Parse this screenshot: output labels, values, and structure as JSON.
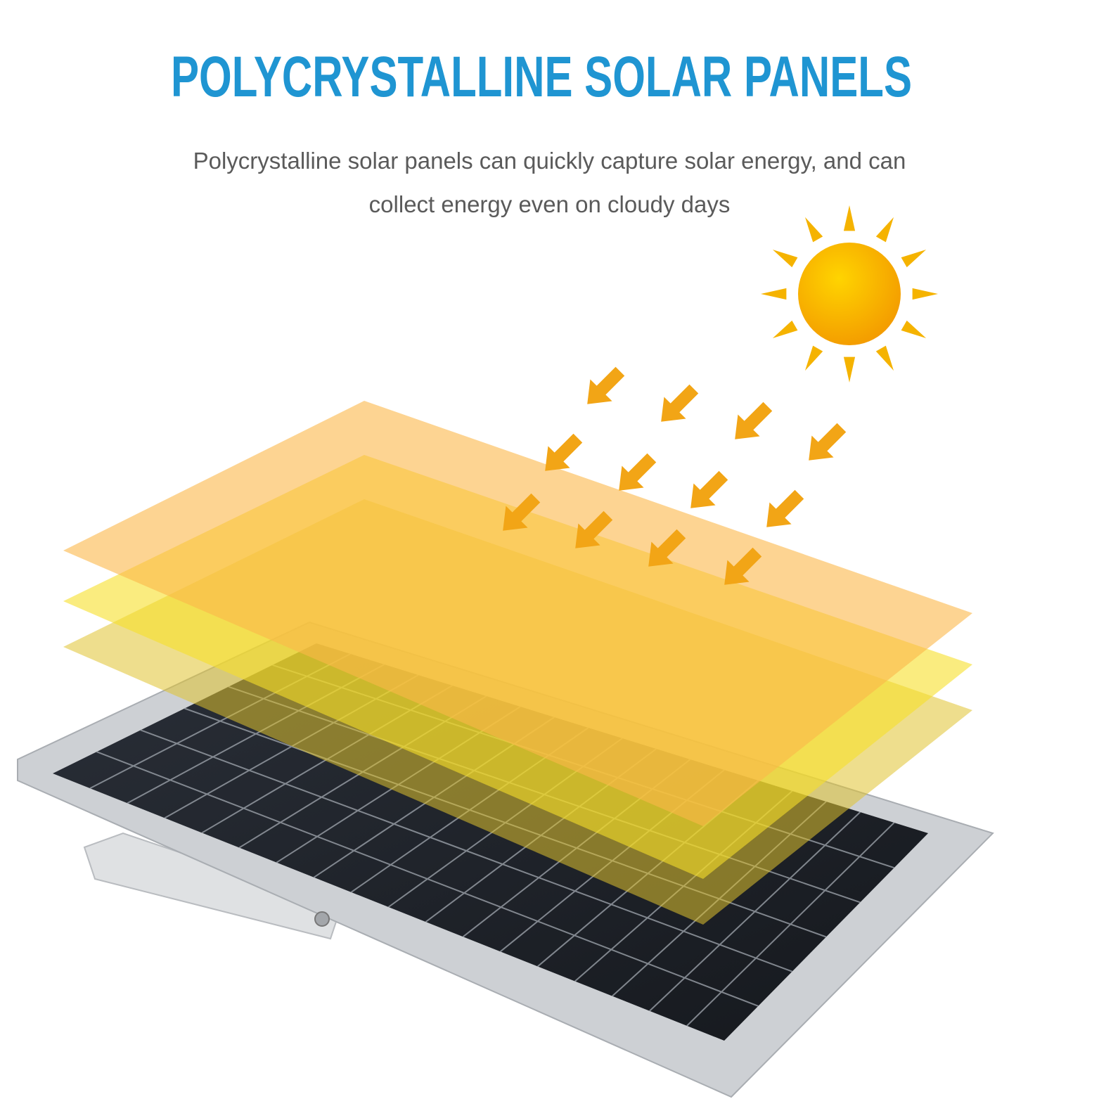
{
  "heading": {
    "title": "POLYCRYSTALLINE SOLAR PANELS",
    "color": "#1f95d2"
  },
  "description": {
    "line1": "Polycrystalline solar panels can quickly capture solar energy, and can",
    "line2": "collect energy even on cloudy days"
  },
  "illustration": {
    "sun_color": "#f6b400",
    "arrow_color": "#f2a516",
    "layer_colors": [
      "#fdc66f",
      "#f7e13a",
      "#e9d45a"
    ],
    "panel_cell_color": "#1e2229",
    "frame_color": "#c9ccd0"
  }
}
